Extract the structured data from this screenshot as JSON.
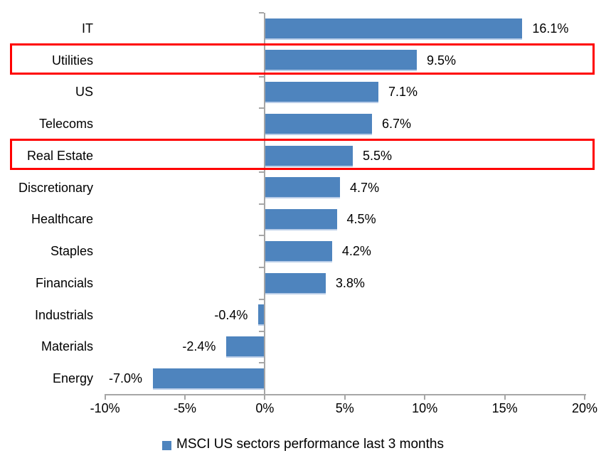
{
  "chart_data": {
    "type": "bar",
    "orientation": "horizontal",
    "title": "",
    "legend": "MSCI US sectors performance last 3 months",
    "legend_position": "bottom",
    "categories": [
      "IT",
      "Utilities",
      "US",
      "Telecoms",
      "Real Estate",
      "Discretionary",
      "Healthcare",
      "Staples",
      "Financials",
      "Industrials",
      "Materials",
      "Energy"
    ],
    "values": [
      16.1,
      9.5,
      7.1,
      6.7,
      5.5,
      4.7,
      4.5,
      4.2,
      3.8,
      -0.4,
      -2.4,
      -7.0
    ],
    "data_labels": [
      "16.1%",
      "9.5%",
      "7.1%",
      "6.7%",
      "5.5%",
      "4.7%",
      "4.5%",
      "4.2%",
      "3.8%",
      "-0.4%",
      "-2.4%",
      "-7.0%"
    ],
    "x_tick_labels": [
      "-10%",
      "-5%",
      "0%",
      "5%",
      "10%",
      "15%",
      "20%"
    ],
    "x_tick_values": [
      -10,
      -5,
      0,
      5,
      10,
      15,
      20
    ],
    "xlim": [
      -10,
      20
    ],
    "grid": "off",
    "highlighted_categories": [
      "Utilities",
      "Real Estate"
    ],
    "colors": {
      "bar": "#4e84be",
      "bar_shadow": "#b9cde8",
      "highlight_box": "#ff0000",
      "axis": "#a6a6a6",
      "text": "#000000"
    }
  }
}
